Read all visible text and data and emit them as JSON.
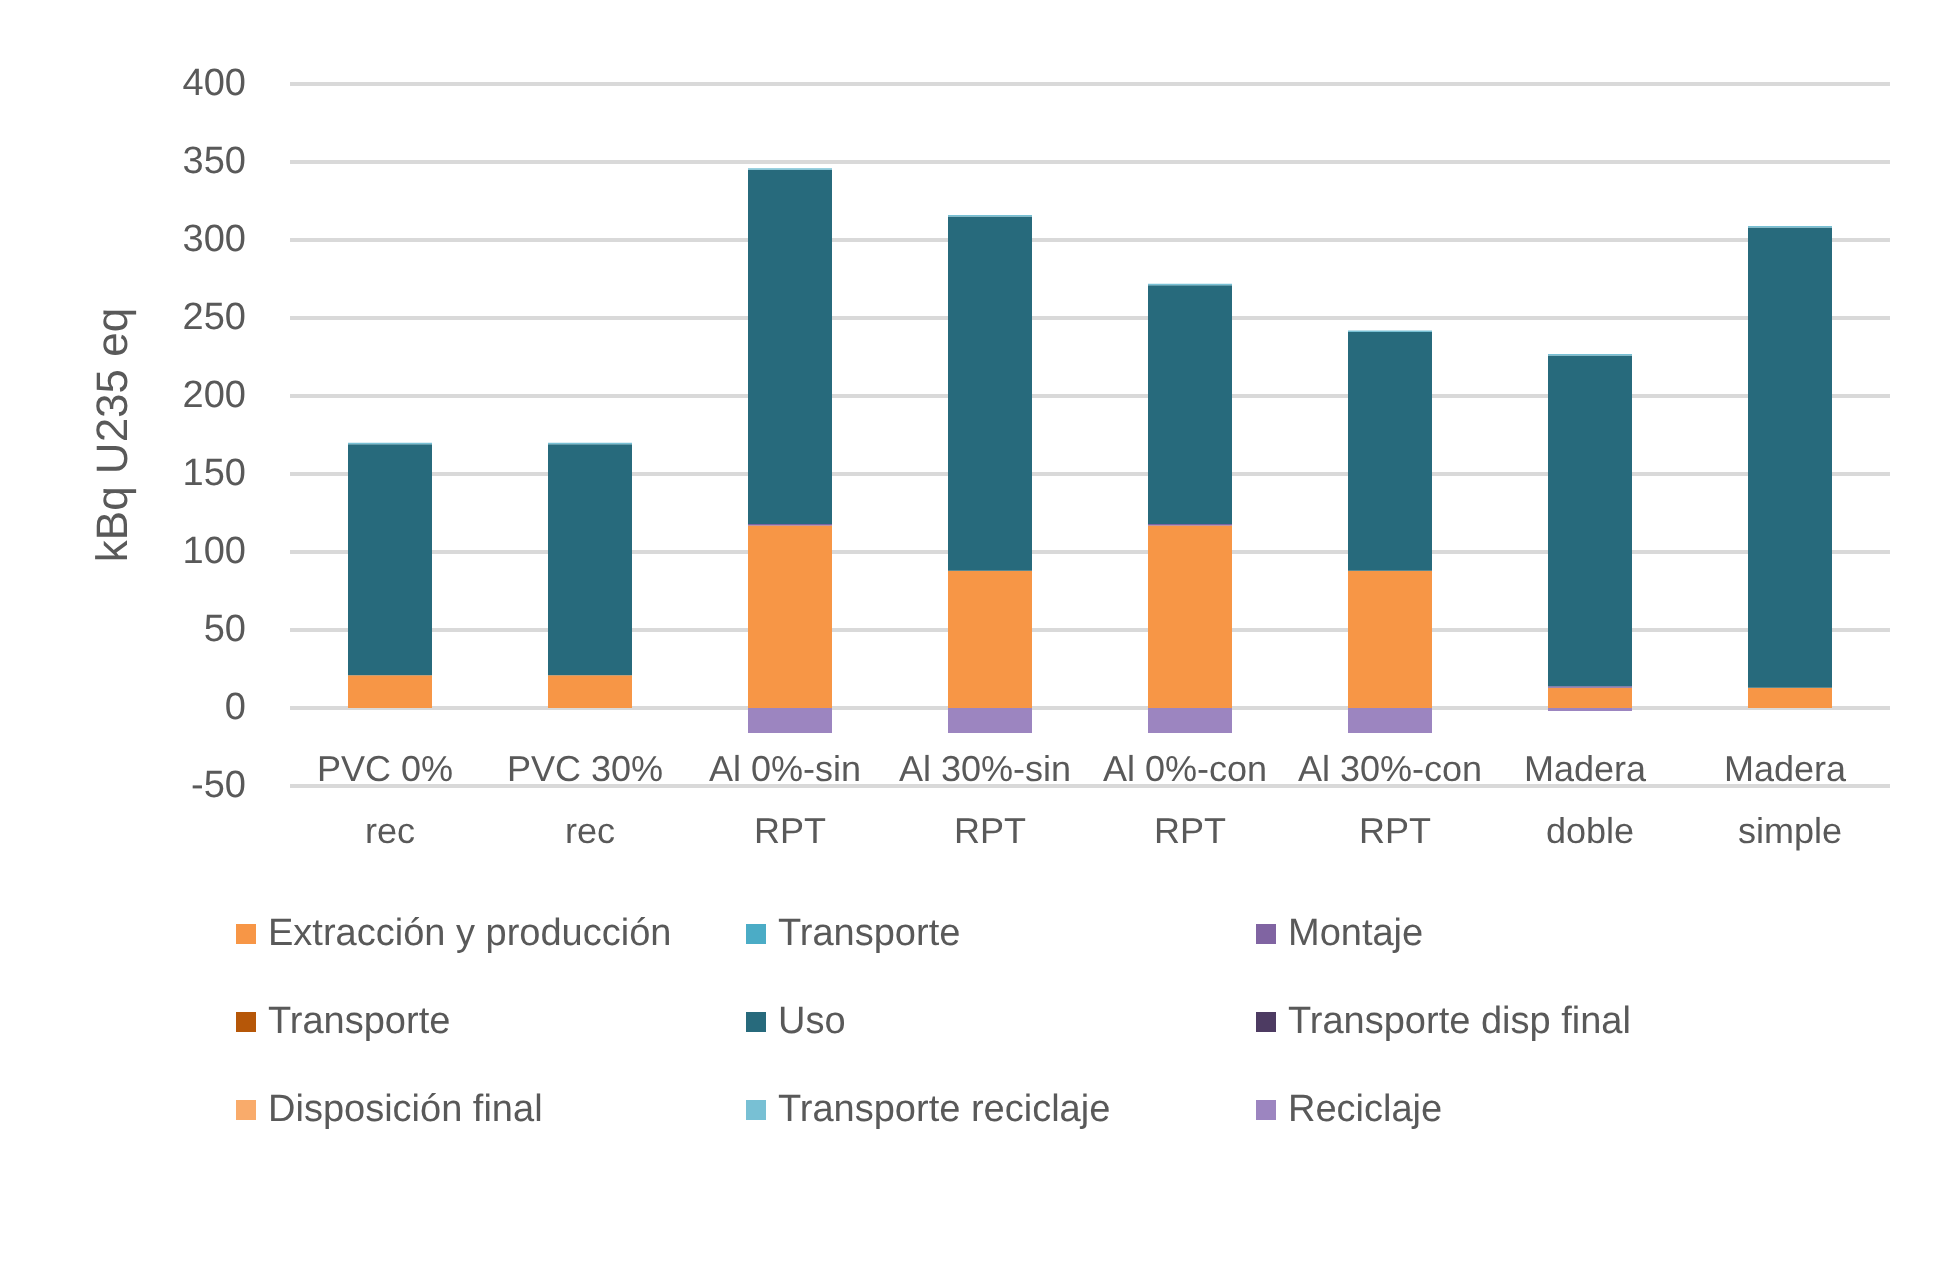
{
  "chart_data": {
    "type": "bar",
    "stacked": true,
    "ylabel": "kBq U235 eq",
    "categories": [
      "PVC 0% rec",
      "PVC 30% rec",
      "Al 0%-sin RPT",
      "Al 30%-sin RPT",
      "Al 0%-con RPT",
      "Al 30%-con RPT",
      "Madera doble",
      "Madera simple"
    ],
    "series": [
      {
        "name": "Extracción y producción",
        "color": "#f79646",
        "values": [
          21,
          21,
          117,
          88,
          117,
          88,
          13,
          13
        ]
      },
      {
        "name": "Transporte",
        "color": "#4bacc6",
        "values": [
          null,
          null,
          null,
          null,
          null,
          null,
          null,
          null
        ]
      },
      {
        "name": "Montaje",
        "color": "#8064a2",
        "values": [
          null,
          null,
          1,
          null,
          1,
          null,
          1,
          null
        ]
      },
      {
        "name": "Transporte",
        "color": "#b65708",
        "values": [
          null,
          null,
          null,
          null,
          null,
          null,
          null,
          null
        ]
      },
      {
        "name": "Uso",
        "color": "#276a7c",
        "values": [
          148,
          148,
          227,
          227,
          153,
          153,
          212,
          295
        ]
      },
      {
        "name": "Transporte disp final",
        "color": "#4d3b62",
        "values": [
          null,
          null,
          null,
          null,
          null,
          null,
          null,
          null
        ]
      },
      {
        "name": "Disposición final",
        "color": "#f9ab6b",
        "values": [
          null,
          null,
          null,
          null,
          null,
          null,
          null,
          null
        ]
      },
      {
        "name": "Transporte reciclaje",
        "color": "#78c0d4",
        "values": [
          1,
          1,
          1,
          1,
          1,
          1,
          1,
          1
        ]
      },
      {
        "name": "Reciclaje",
        "color": "#9c85c0",
        "values": [
          null,
          null,
          -16,
          -16,
          -16,
          -16,
          -2,
          null
        ]
      }
    ],
    "ylim": [
      -50,
      400
    ],
    "yticks": [
      -50,
      0,
      50,
      100,
      150,
      200,
      250,
      300,
      350,
      400
    ],
    "grid": "y",
    "legend": "bottom"
  }
}
